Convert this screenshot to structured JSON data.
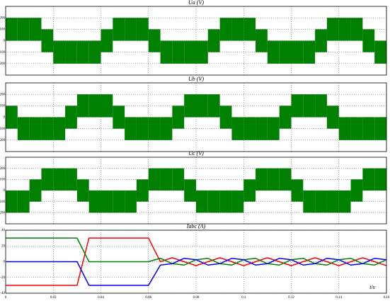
{
  "chart_data": [
    {
      "type": "area",
      "title": "Ua (V)",
      "color": "#008000",
      "x": [
        0,
        0.005,
        0.01,
        0.015,
        0.02,
        0.025,
        0.03,
        0.035,
        0.04,
        0.045,
        0.05,
        0.055,
        0.06,
        0.065,
        0.07,
        0.075,
        0.08,
        0.085,
        0.09,
        0.095,
        0.1,
        0.105,
        0.11,
        0.115,
        0.12,
        0.125,
        0.13,
        0.135,
        0.14,
        0.145,
        0.15,
        0.155
      ],
      "upper": [
        200,
        200,
        200,
        100,
        0,
        0,
        0,
        0,
        100,
        200,
        200,
        200,
        100,
        0,
        0,
        0,
        0,
        100,
        200,
        200,
        200,
        100,
        0,
        0,
        0,
        0,
        100,
        200,
        200,
        200,
        100,
        0
      ],
      "lower": [
        0,
        0,
        0,
        -100,
        -200,
        -200,
        -200,
        -200,
        -100,
        0,
        0,
        0,
        -100,
        -200,
        -200,
        -200,
        -200,
        -100,
        0,
        0,
        0,
        -100,
        -200,
        -200,
        -200,
        -200,
        -100,
        0,
        0,
        0,
        -100,
        -200
      ],
      "xlim": [
        0,
        0.16
      ],
      "xticks": [
        0,
        0.02,
        0.04,
        0.06,
        0.08,
        0.1,
        0.12,
        0.14,
        0.16
      ],
      "ylim": [
        -300,
        300
      ],
      "yticks": [
        -200,
        -100,
        0,
        100,
        200
      ],
      "grid": true
    },
    {
      "type": "area",
      "title": "Ub (V)",
      "color": "#008000",
      "x": [
        0,
        0.005,
        0.01,
        0.015,
        0.02,
        0.025,
        0.03,
        0.035,
        0.04,
        0.045,
        0.05,
        0.055,
        0.06,
        0.065,
        0.07,
        0.075,
        0.08,
        0.085,
        0.09,
        0.095,
        0.1,
        0.105,
        0.11,
        0.115,
        0.12,
        0.125,
        0.13,
        0.135,
        0.14,
        0.145,
        0.15,
        0.155
      ],
      "upper": [
        100,
        0,
        0,
        0,
        0,
        100,
        200,
        200,
        200,
        100,
        0,
        0,
        0,
        0,
        100,
        200,
        200,
        200,
        100,
        0,
        0,
        0,
        0,
        100,
        200,
        200,
        200,
        100,
        0,
        0,
        0,
        0
      ],
      "lower": [
        -100,
        -200,
        -200,
        -200,
        -200,
        -100,
        0,
        0,
        0,
        -100,
        -200,
        -200,
        -200,
        -200,
        -100,
        0,
        0,
        0,
        -100,
        -200,
        -200,
        -200,
        -200,
        -100,
        0,
        0,
        0,
        -100,
        -200,
        -200,
        -200,
        -200
      ],
      "xlim": [
        0,
        0.16
      ],
      "xticks": [
        0,
        0.02,
        0.04,
        0.06,
        0.08,
        0.1,
        0.12,
        0.14,
        0.16
      ],
      "ylim": [
        -300,
        300
      ],
      "yticks": [
        -200,
        -100,
        0,
        100,
        200
      ],
      "grid": true
    },
    {
      "type": "area",
      "title": "Uc (V)",
      "color": "#008000",
      "x": [
        0,
        0.005,
        0.01,
        0.015,
        0.02,
        0.025,
        0.03,
        0.035,
        0.04,
        0.045,
        0.05,
        0.055,
        0.06,
        0.065,
        0.07,
        0.075,
        0.08,
        0.085,
        0.09,
        0.095,
        0.1,
        0.105,
        0.11,
        0.115,
        0.12,
        0.125,
        0.13,
        0.135,
        0.14,
        0.145,
        0.15,
        0.155
      ],
      "upper": [
        0,
        0,
        100,
        200,
        200,
        200,
        100,
        0,
        0,
        0,
        0,
        100,
        200,
        200,
        200,
        100,
        0,
        0,
        0,
        0,
        100,
        200,
        200,
        200,
        100,
        0,
        0,
        0,
        0,
        100,
        200,
        200
      ],
      "lower": [
        -200,
        -200,
        -100,
        0,
        0,
        0,
        -100,
        -200,
        -200,
        -200,
        -200,
        -100,
        0,
        0,
        0,
        -100,
        -200,
        -200,
        -200,
        -200,
        -100,
        0,
        0,
        0,
        -100,
        -200,
        -200,
        -200,
        -200,
        -100,
        0,
        0
      ],
      "xlim": [
        0,
        0.16
      ],
      "xticks": [
        0,
        0.02,
        0.04,
        0.06,
        0.08,
        0.1,
        0.12,
        0.14,
        0.16
      ],
      "ylim": [
        -300,
        300
      ],
      "yticks": [
        -200,
        -100,
        0,
        100,
        200
      ],
      "grid": true
    },
    {
      "type": "line",
      "title": "Iabc (A)",
      "xlabel": "t/s",
      "x": [
        0,
        0.005,
        0.01,
        0.015,
        0.02,
        0.025,
        0.03,
        0.035,
        0.04,
        0.045,
        0.05,
        0.055,
        0.06,
        0.065,
        0.07,
        0.075,
        0.08,
        0.085,
        0.09,
        0.095,
        0.1,
        0.105,
        0.11,
        0.115,
        0.12,
        0.125,
        0.13,
        0.135,
        0.14,
        0.145,
        0.15,
        0.155,
        0.16
      ],
      "series": [
        {
          "color": "#ff0000",
          "values": [
            -30,
            -30,
            -30,
            -30,
            -30,
            -30,
            -30,
            30,
            30,
            30,
            30,
            30,
            30,
            0,
            5,
            0,
            -5,
            0,
            5,
            0,
            -5,
            0,
            5,
            0,
            -5,
            0,
            5,
            0,
            -5,
            0,
            5,
            0,
            -5
          ]
        },
        {
          "color": "#008000",
          "values": [
            30,
            30,
            30,
            30,
            30,
            30,
            30,
            0,
            0,
            0,
            0,
            0,
            0,
            4.3,
            -2.5,
            -4.3,
            2.5,
            4.3,
            -2.5,
            -4.3,
            2.5,
            4.3,
            -2.5,
            -4.3,
            2.5,
            4.3,
            -2.5,
            -4.3,
            2.5,
            4.3,
            -2.5,
            -4.3,
            2.5
          ]
        },
        {
          "color": "#0000ff",
          "values": [
            0,
            0,
            0,
            0,
            0,
            0,
            0,
            -30,
            -30,
            -30,
            -30,
            -30,
            -30,
            -4.3,
            -2.5,
            4.3,
            2.5,
            -4.3,
            -2.5,
            4.3,
            2.5,
            -4.3,
            -2.5,
            4.3,
            2.5,
            -4.3,
            -2.5,
            4.3,
            2.5,
            -4.3,
            -2.5,
            4.3,
            2.5
          ]
        }
      ],
      "xlim": [
        0,
        0.16
      ],
      "xticks": [
        0,
        0.02,
        0.04,
        0.06,
        0.08,
        0.1,
        0.12,
        0.14,
        0.16
      ],
      "ylim": [
        -40,
        40
      ],
      "yticks": [
        -40,
        -20,
        0,
        20,
        40
      ],
      "grid": true
    }
  ]
}
